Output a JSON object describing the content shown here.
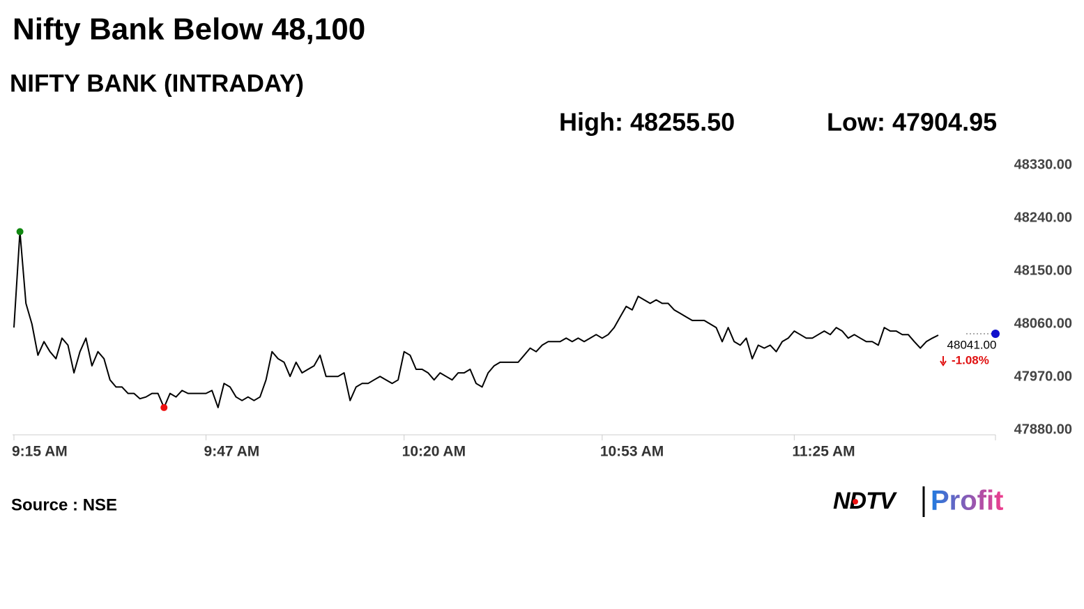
{
  "chart_data": {
    "type": "line",
    "title": "Nifty Bank Below 48,100",
    "subtitle": "NIFTY BANK (INTRADAY)",
    "high_label": "High: 48255.50",
    "low_label": "Low: 47904.95",
    "change_label": "-1.08%",
    "source": "Source : NSE",
    "logo": {
      "brand": "NDTV",
      "product": "Profit"
    },
    "x": [
      "9:15 AM",
      "9:16 AM",
      "9:17 AM",
      "9:18 AM",
      "9:19 AM",
      "9:20 AM",
      "9:21 AM",
      "9:22 AM",
      "9:23 AM",
      "9:24 AM",
      "9:25 AM",
      "9:26 AM",
      "9:27 AM",
      "9:28 AM",
      "9:29 AM",
      "9:30 AM",
      "9:31 AM",
      "9:32 AM",
      "9:33 AM",
      "9:34 AM",
      "9:35 AM",
      "9:36 AM",
      "9:37 AM",
      "9:38 AM",
      "9:39 AM",
      "9:40 AM",
      "9:41 AM",
      "9:42 AM",
      "9:43 AM",
      "9:44 AM",
      "9:45 AM",
      "9:46 AM",
      "9:47 AM",
      "9:48 AM",
      "9:49 AM",
      "9:50 AM",
      "9:51 AM",
      "9:52 AM",
      "9:53 AM",
      "9:54 AM",
      "9:55 AM",
      "9:56 AM",
      "9:57 AM",
      "9:58 AM",
      "9:59 AM",
      "10:00 AM",
      "10:01 AM",
      "10:02 AM",
      "10:03 AM",
      "10:04 AM",
      "10:05 AM",
      "10:06 AM",
      "10:07 AM",
      "10:08 AM",
      "10:09 AM",
      "10:10 AM",
      "10:11 AM",
      "10:12 AM",
      "10:13 AM",
      "10:14 AM",
      "10:15 AM",
      "10:16 AM",
      "10:17 AM",
      "10:18 AM",
      "10:19 AM",
      "10:20 AM",
      "10:21 AM",
      "10:22 AM",
      "10:23 AM",
      "10:24 AM",
      "10:25 AM",
      "10:26 AM",
      "10:27 AM",
      "10:28 AM",
      "10:29 AM",
      "10:30 AM",
      "10:31 AM",
      "10:32 AM",
      "10:33 AM",
      "10:34 AM",
      "10:35 AM",
      "10:36 AM",
      "10:37 AM",
      "10:38 AM",
      "10:39 AM",
      "10:40 AM",
      "10:41 AM",
      "10:42 AM",
      "10:43 AM",
      "10:44 AM",
      "10:45 AM",
      "10:46 AM",
      "10:47 AM",
      "10:48 AM",
      "10:49 AM",
      "10:50 AM",
      "10:51 AM",
      "10:52 AM",
      "10:53 AM",
      "10:54 AM",
      "10:55 AM",
      "10:56 AM",
      "10:57 AM",
      "10:58 AM",
      "10:59 AM",
      "11:00 AM",
      "11:01 AM",
      "11:02 AM",
      "11:03 AM",
      "11:04 AM",
      "11:05 AM",
      "11:06 AM",
      "11:07 AM",
      "11:08 AM",
      "11:09 AM",
      "11:10 AM",
      "11:11 AM",
      "11:12 AM",
      "11:13 AM",
      "11:14 AM",
      "11:15 AM",
      "11:16 AM",
      "11:17 AM",
      "11:18 AM",
      "11:19 AM",
      "11:20 AM",
      "11:21 AM",
      "11:22 AM",
      "11:23 AM",
      "11:24 AM",
      "11:25 AM",
      "11:26 AM",
      "11:27 AM",
      "11:28 AM",
      "11:29 AM",
      "11:30 AM",
      "11:31 AM",
      "11:32 AM",
      "11:33 AM",
      "11:34 AM",
      "11:35 AM",
      "11:36 AM",
      "11:37 AM",
      "11:38 AM",
      "11:39 AM",
      "11:40 AM",
      "11:41 AM",
      "11:42 AM",
      "11:43 AM",
      "11:44 AM",
      "11:45 AM",
      "11:46 AM",
      "11:47 AM",
      "11:48 AM",
      "11:49 AM"
    ],
    "values": [
      48054,
      48217,
      48095,
      48060,
      48007,
      48030,
      48013,
      48001,
      48036,
      48024,
      47977,
      48013,
      48036,
      47989,
      48013,
      48001,
      47965,
      47953,
      47953,
      47942,
      47942,
      47933,
      47936,
      47942,
      47942,
      47918,
      47942,
      47936,
      47947,
      47942,
      47942,
      47942,
      47942,
      47947,
      47918,
      47959,
      47953,
      47936,
      47930,
      47936,
      47930,
      47936,
      47965,
      48013,
      48001,
      47995,
      47971,
      47995,
      47977,
      47983,
      47989,
      48007,
      47971,
      47971,
      47971,
      47977,
      47930,
      47953,
      47959,
      47959,
      47965,
      47971,
      47965,
      47959,
      47965,
      48013,
      48007,
      47983,
      47983,
      47977,
      47965,
      47977,
      47971,
      47965,
      47977,
      47977,
      47983,
      47959,
      47953,
      47977,
      47989,
      47995,
      47995,
      47995,
      47995,
      48007,
      48019,
      48013,
      48024,
      48030,
      48030,
      48030,
      48036,
      48030,
      48036,
      48030,
      48036,
      48042,
      48036,
      48042,
      48054,
      48072,
      48090,
      48084,
      48107,
      48101,
      48095,
      48101,
      48095,
      48095,
      48084,
      48078,
      48072,
      48066,
      48066,
      48066,
      48060,
      48054,
      48030,
      48054,
      48030,
      48024,
      48036,
      48001,
      48024,
      48019,
      48024,
      48013,
      48030,
      48036,
      48048,
      48042,
      48036,
      48036,
      48042,
      48048,
      48042,
      48054,
      48048,
      48036,
      48042,
      48036,
      48030,
      48030,
      48024,
      48054,
      48048,
      48048,
      48042,
      48042,
      48030,
      48019,
      48030,
      48036,
      48041
    ],
    "last_value_label": "48041.00",
    "color": "#000000",
    "ylim": [
      47880,
      48330
    ],
    "yticks": [
      {
        "value": 47880,
        "label": "47880.00"
      },
      {
        "value": 47970,
        "label": "47970.00"
      },
      {
        "value": 48060,
        "label": "48060.00"
      },
      {
        "value": 48150,
        "label": "48150.00"
      },
      {
        "value": 48240,
        "label": "48240.00"
      },
      {
        "value": 48330,
        "label": "48330.00"
      }
    ],
    "xticks": [
      "9:15 AM",
      "9:47 AM",
      "10:20 AM",
      "10:53 AM",
      "11:25 AM"
    ],
    "grid": false
  }
}
